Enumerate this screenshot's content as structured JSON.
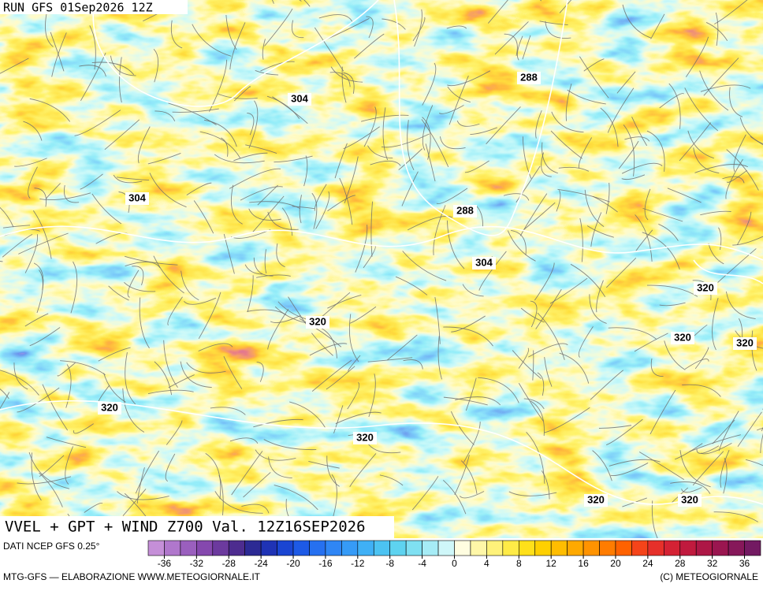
{
  "header": {
    "run": "RUN GFS 01Sep2026 12Z"
  },
  "map": {
    "title": "VVEL + GPT + WIND Z700 Val. 12Z16SEP2026",
    "contour_labels": [
      304,
      288,
      304,
      288,
      304,
      320,
      320,
      320,
      320,
      320,
      320,
      320,
      320
    ]
  },
  "legend": {
    "source": "DATI NCEP GFS 0.25°",
    "ticks": [
      -36,
      -32,
      -28,
      -24,
      -20,
      -16,
      -12,
      -8,
      -4,
      0,
      4,
      8,
      12,
      16,
      20,
      24,
      28,
      32,
      36
    ],
    "colors": [
      "#c58fd8",
      "#b077cc",
      "#9a5fbe",
      "#8548ae",
      "#6c3a9e",
      "#4d2c8f",
      "#2c2a94",
      "#1f33b5",
      "#1a45d2",
      "#1d5ae6",
      "#2670f0",
      "#2f86f5",
      "#369bf7",
      "#3fb0f6",
      "#4cc3f2",
      "#5ed3f0",
      "#7fe0f2",
      "#a6ecf6",
      "#cff7f9",
      "#fffde0",
      "#fff7a8",
      "#fff27a",
      "#ffeb47",
      "#ffe01a",
      "#ffd000",
      "#ffbd00",
      "#ffa900",
      "#ff9300",
      "#ff7c00",
      "#ff6200",
      "#f5441a",
      "#e6302a",
      "#d42234",
      "#c01a3e",
      "#ad1746",
      "#9a1650",
      "#86185a",
      "#731a62"
    ]
  },
  "footer": {
    "credit_left": "MTG-GFS — ELABORAZIONE WWW.METEOGIORNALE.IT",
    "credit_right": "(C) METEOGIORNALE"
  }
}
